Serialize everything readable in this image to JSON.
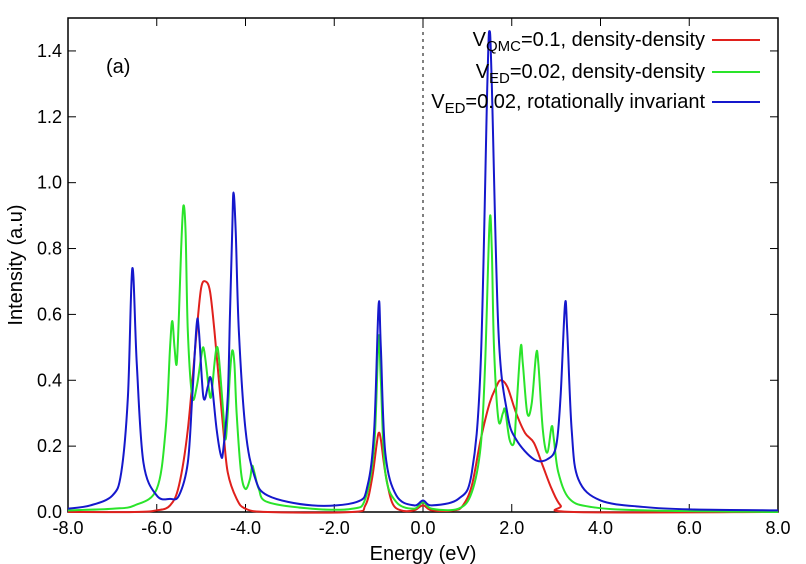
{
  "chart_data": {
    "type": "line",
    "panel_label": "(a)",
    "xlabel": "Energy (eV)",
    "ylabel": "Intensity (a.u)",
    "xlim": [
      -8.0,
      8.0
    ],
    "ylim": [
      0.0,
      1.5
    ],
    "x_ticks": [
      -8,
      -6,
      -4,
      -2,
      0,
      2,
      4,
      6,
      8
    ],
    "x_tick_labels": [
      "-8.0",
      "-6.0",
      "-4.0",
      "-2.0",
      "0.0",
      "2.0",
      "4.0",
      "6.0",
      "8.0"
    ],
    "y_ticks": [
      0,
      0.2,
      0.4,
      0.6,
      0.8,
      1.0,
      1.2,
      1.4
    ],
    "y_tick_labels": [
      "0.0",
      "0.2",
      "0.4",
      "0.6",
      "0.8",
      "1.0",
      "1.2",
      "1.4"
    ],
    "reference_line_x": 0.0,
    "legend_position": "top-right",
    "grid": false,
    "series": [
      {
        "legend": {
          "pre": "V",
          "sub": "QMC",
          "post": "=0.1, density-density"
        },
        "color": "#e0201c",
        "points": [
          [
            -8.0,
            0.0
          ],
          [
            -6.5,
            0.0
          ],
          [
            -6.0,
            0.005
          ],
          [
            -5.7,
            0.02
          ],
          [
            -5.5,
            0.08
          ],
          [
            -5.3,
            0.25
          ],
          [
            -5.1,
            0.55
          ],
          [
            -5.0,
            0.68
          ],
          [
            -4.9,
            0.7
          ],
          [
            -4.8,
            0.67
          ],
          [
            -4.7,
            0.55
          ],
          [
            -4.6,
            0.4
          ],
          [
            -4.5,
            0.25
          ],
          [
            -4.4,
            0.12
          ],
          [
            -4.2,
            0.04
          ],
          [
            -4.0,
            0.01
          ],
          [
            -3.5,
            0.0
          ],
          [
            -1.6,
            0.0
          ],
          [
            -1.3,
            0.02
          ],
          [
            -1.15,
            0.1
          ],
          [
            -1.05,
            0.2
          ],
          [
            -1.0,
            0.24
          ],
          [
            -0.95,
            0.22
          ],
          [
            -0.85,
            0.12
          ],
          [
            -0.7,
            0.03
          ],
          [
            -0.5,
            0.005
          ],
          [
            -0.2,
            0.005
          ],
          [
            0.0,
            0.02
          ],
          [
            0.2,
            0.005
          ],
          [
            0.7,
            0.005
          ],
          [
            0.9,
            0.02
          ],
          [
            1.1,
            0.08
          ],
          [
            1.3,
            0.22
          ],
          [
            1.5,
            0.33
          ],
          [
            1.65,
            0.38
          ],
          [
            1.75,
            0.4
          ],
          [
            1.9,
            0.38
          ],
          [
            2.1,
            0.3
          ],
          [
            2.3,
            0.24
          ],
          [
            2.5,
            0.21
          ],
          [
            2.7,
            0.14
          ],
          [
            2.9,
            0.07
          ],
          [
            3.1,
            0.02
          ],
          [
            3.4,
            0.0
          ],
          [
            8.0,
            0.0
          ]
        ]
      },
      {
        "legend": {
          "pre": "V",
          "sub": "ED",
          "post": "=0.02, density-density"
        },
        "color": "#2ae42a",
        "points": [
          [
            -8.0,
            0.005
          ],
          [
            -7.0,
            0.01
          ],
          [
            -6.5,
            0.02
          ],
          [
            -6.0,
            0.07
          ],
          [
            -5.8,
            0.25
          ],
          [
            -5.7,
            0.5
          ],
          [
            -5.65,
            0.58
          ],
          [
            -5.6,
            0.5
          ],
          [
            -5.55,
            0.45
          ],
          [
            -5.5,
            0.6
          ],
          [
            -5.45,
            0.8
          ],
          [
            -5.4,
            0.93
          ],
          [
            -5.35,
            0.85
          ],
          [
            -5.3,
            0.55
          ],
          [
            -5.2,
            0.35
          ],
          [
            -5.1,
            0.38
          ],
          [
            -5.0,
            0.47
          ],
          [
            -4.95,
            0.5
          ],
          [
            -4.9,
            0.46
          ],
          [
            -4.8,
            0.35
          ],
          [
            -4.75,
            0.38
          ],
          [
            -4.7,
            0.45
          ],
          [
            -4.65,
            0.5
          ],
          [
            -4.6,
            0.47
          ],
          [
            -4.5,
            0.3
          ],
          [
            -4.45,
            0.22
          ],
          [
            -4.4,
            0.3
          ],
          [
            -4.35,
            0.42
          ],
          [
            -4.3,
            0.49
          ],
          [
            -4.25,
            0.45
          ],
          [
            -4.2,
            0.3
          ],
          [
            -4.1,
            0.12
          ],
          [
            -4.0,
            0.07
          ],
          [
            -3.9,
            0.1
          ],
          [
            -3.85,
            0.14
          ],
          [
            -3.8,
            0.12
          ],
          [
            -3.7,
            0.07
          ],
          [
            -3.5,
            0.03
          ],
          [
            -2.5,
            0.01
          ],
          [
            -1.6,
            0.01
          ],
          [
            -1.3,
            0.04
          ],
          [
            -1.1,
            0.2
          ],
          [
            -1.0,
            0.53
          ],
          [
            -0.95,
            0.4
          ],
          [
            -0.85,
            0.12
          ],
          [
            -0.6,
            0.03
          ],
          [
            -0.2,
            0.01
          ],
          [
            0.0,
            0.03
          ],
          [
            0.2,
            0.01
          ],
          [
            0.8,
            0.01
          ],
          [
            1.1,
            0.06
          ],
          [
            1.3,
            0.2
          ],
          [
            1.4,
            0.45
          ],
          [
            1.5,
            0.88
          ],
          [
            1.55,
            0.8
          ],
          [
            1.6,
            0.5
          ],
          [
            1.7,
            0.28
          ],
          [
            1.8,
            0.3
          ],
          [
            1.85,
            0.31
          ],
          [
            1.95,
            0.22
          ],
          [
            2.05,
            0.21
          ],
          [
            2.1,
            0.3
          ],
          [
            2.2,
            0.5
          ],
          [
            2.25,
            0.45
          ],
          [
            2.35,
            0.3
          ],
          [
            2.45,
            0.33
          ],
          [
            2.55,
            0.48
          ],
          [
            2.6,
            0.45
          ],
          [
            2.7,
            0.25
          ],
          [
            2.8,
            0.18
          ],
          [
            2.9,
            0.26
          ],
          [
            2.95,
            0.22
          ],
          [
            3.05,
            0.12
          ],
          [
            3.3,
            0.04
          ],
          [
            3.8,
            0.015
          ],
          [
            5.0,
            0.005
          ],
          [
            8.0,
            0.0
          ]
        ]
      },
      {
        "legend": {
          "pre": "V",
          "sub": "ED",
          "post": "=0.02, rotationally invariant"
        },
        "color": "#1518cc",
        "points": [
          [
            -8.0,
            0.01
          ],
          [
            -7.5,
            0.02
          ],
          [
            -7.0,
            0.05
          ],
          [
            -6.8,
            0.12
          ],
          [
            -6.65,
            0.35
          ],
          [
            -6.55,
            0.74
          ],
          [
            -6.45,
            0.45
          ],
          [
            -6.3,
            0.15
          ],
          [
            -6.0,
            0.05
          ],
          [
            -5.7,
            0.04
          ],
          [
            -5.5,
            0.05
          ],
          [
            -5.3,
            0.15
          ],
          [
            -5.2,
            0.35
          ],
          [
            -5.1,
            0.57
          ],
          [
            -5.05,
            0.55
          ],
          [
            -4.95,
            0.35
          ],
          [
            -4.85,
            0.38
          ],
          [
            -4.8,
            0.41
          ],
          [
            -4.75,
            0.38
          ],
          [
            -4.65,
            0.25
          ],
          [
            -4.55,
            0.17
          ],
          [
            -4.5,
            0.19
          ],
          [
            -4.4,
            0.35
          ],
          [
            -4.35,
            0.6
          ],
          [
            -4.3,
            0.85
          ],
          [
            -4.27,
            0.97
          ],
          [
            -4.22,
            0.85
          ],
          [
            -4.15,
            0.55
          ],
          [
            -4.0,
            0.25
          ],
          [
            -3.8,
            0.11
          ],
          [
            -3.5,
            0.05
          ],
          [
            -2.5,
            0.02
          ],
          [
            -1.5,
            0.03
          ],
          [
            -1.25,
            0.08
          ],
          [
            -1.1,
            0.25
          ],
          [
            -1.0,
            0.63
          ],
          [
            -0.95,
            0.5
          ],
          [
            -0.85,
            0.18
          ],
          [
            -0.6,
            0.05
          ],
          [
            -0.2,
            0.02
          ],
          [
            0.0,
            0.035
          ],
          [
            0.2,
            0.02
          ],
          [
            0.8,
            0.04
          ],
          [
            1.1,
            0.12
          ],
          [
            1.3,
            0.45
          ],
          [
            1.45,
            1.3
          ],
          [
            1.5,
            1.46
          ],
          [
            1.55,
            1.3
          ],
          [
            1.7,
            0.55
          ],
          [
            1.9,
            0.3
          ],
          [
            2.1,
            0.22
          ],
          [
            2.5,
            0.16
          ],
          [
            2.8,
            0.16
          ],
          [
            3.0,
            0.2
          ],
          [
            3.1,
            0.35
          ],
          [
            3.2,
            0.63
          ],
          [
            3.25,
            0.55
          ],
          [
            3.35,
            0.25
          ],
          [
            3.5,
            0.1
          ],
          [
            4.0,
            0.035
          ],
          [
            5.0,
            0.015
          ],
          [
            6.0,
            0.008
          ],
          [
            8.0,
            0.005
          ]
        ]
      }
    ]
  }
}
